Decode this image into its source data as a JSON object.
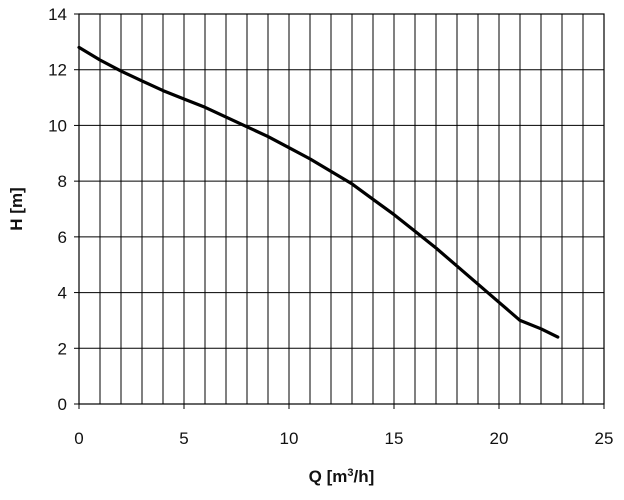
{
  "chart_data": {
    "type": "line",
    "xlabel": "Q [m³/h]",
    "xlabel_parts": {
      "base": "Q [m",
      "sup": "3",
      "tail": "/h]"
    },
    "ylabel": "H [m]",
    "xlim": [
      0,
      25
    ],
    "ylim": [
      0,
      14
    ],
    "x_ticks": [
      0,
      5,
      10,
      15,
      20,
      25
    ],
    "y_ticks": [
      0,
      2,
      4,
      6,
      8,
      10,
      12,
      14
    ],
    "x_gridlines_every": 1,
    "y_gridlines_every": 2,
    "grid": true,
    "legend": "none",
    "series": [
      {
        "color": "#000000",
        "x": [
          0,
          1,
          2,
          3,
          4,
          5,
          6,
          7,
          8,
          9,
          10,
          11,
          12,
          13,
          14,
          15,
          16,
          17,
          18,
          19,
          20,
          21,
          22,
          22.8
        ],
        "y": [
          12.8,
          12.35,
          11.95,
          11.6,
          11.25,
          10.95,
          10.65,
          10.3,
          9.95,
          9.6,
          9.2,
          8.8,
          8.35,
          7.9,
          7.35,
          6.8,
          6.2,
          5.6,
          4.95,
          4.3,
          3.65,
          3.0,
          2.7,
          2.4
        ]
      }
    ]
  }
}
